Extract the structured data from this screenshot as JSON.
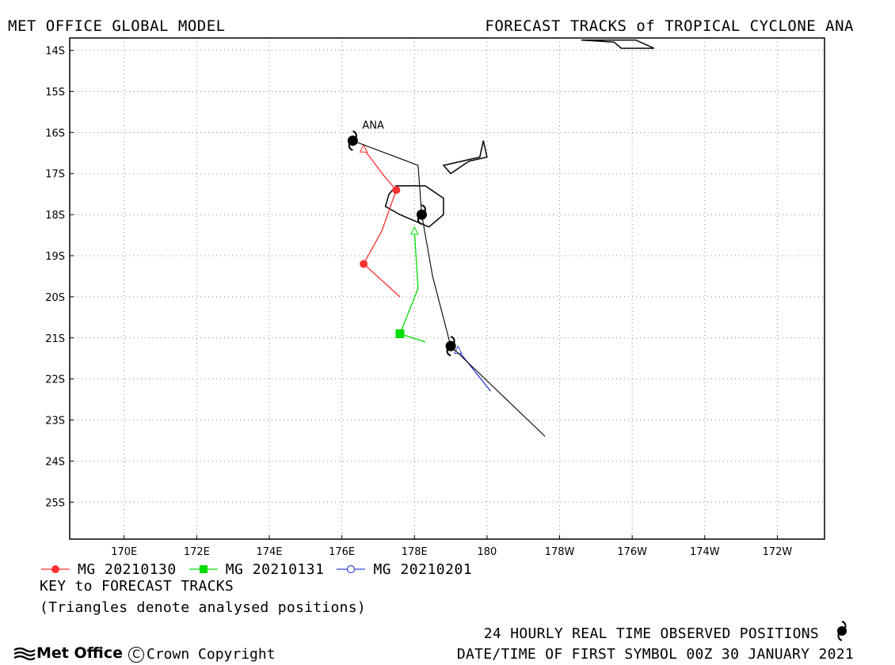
{
  "header": {
    "left_title": "MET OFFICE GLOBAL MODEL",
    "right_title": "FORECAST TRACKS of TROPICAL CYCLONE ANA"
  },
  "map": {
    "lat_labels": [
      "14S",
      "15S",
      "16S",
      "17S",
      "18S",
      "19S",
      "20S",
      "21S",
      "22S",
      "23S",
      "24S",
      "25S"
    ],
    "lon_labels": [
      "170E",
      "172E",
      "174E",
      "176E",
      "178E",
      "180",
      "178W",
      "176W",
      "174W",
      "172W"
    ],
    "lat_range_deg_south": [
      13.7,
      25.9
    ],
    "lon_range_deg_east": [
      168.5,
      189.3
    ],
    "grid": "dotted",
    "storm_label": "ANA",
    "observed_track": [
      [
        176.3,
        16.2
      ],
      [
        178.1,
        16.8
      ],
      [
        178.2,
        18.0
      ],
      [
        178.5,
        19.5
      ],
      [
        179.0,
        21.2
      ],
      [
        181.6,
        23.4
      ]
    ],
    "observed_positions": [
      [
        176.3,
        16.2
      ],
      [
        178.2,
        18.0
      ],
      [
        179.0,
        21.2
      ]
    ],
    "forecast_tracks": [
      {
        "name": "MG 20210130",
        "color": "#ff3030",
        "marker": "circle",
        "points": [
          [
            176.6,
            16.4
          ],
          [
            177.2,
            17.1
          ],
          [
            177.5,
            17.4
          ],
          [
            177.1,
            18.4
          ],
          [
            176.6,
            19.2
          ],
          [
            177.6,
            20.0
          ]
        ],
        "markers": [
          [
            177.5,
            17.4
          ],
          [
            176.6,
            19.2
          ]
        ],
        "analysed": [
          176.6,
          16.4
        ]
      },
      {
        "name": "MG 20210131",
        "color": "#00dd00",
        "marker": "square",
        "points": [
          [
            178.0,
            18.4
          ],
          [
            178.1,
            19.8
          ],
          [
            177.6,
            20.9
          ],
          [
            178.3,
            21.1
          ]
        ],
        "markers": [
          [
            177.6,
            20.9
          ]
        ],
        "analysed": [
          178.0,
          18.4
        ]
      },
      {
        "name": "MG 20210201",
        "color": "#3344dd",
        "marker": "open-circle",
        "points": [
          [
            179.2,
            21.3
          ],
          [
            180.1,
            22.3
          ]
        ],
        "markers": [],
        "analysed": [
          179.2,
          21.3
        ]
      }
    ],
    "uncertainty_polygon": [
      [
        177.5,
        17.3
      ],
      [
        178.3,
        17.3
      ],
      [
        178.8,
        17.6
      ],
      [
        178.8,
        18.0
      ],
      [
        178.4,
        18.3
      ],
      [
        177.6,
        18.0
      ],
      [
        177.2,
        17.8
      ],
      [
        177.3,
        17.5
      ]
    ],
    "islands": [
      [
        [
          178.8,
          16.8
        ],
        [
          179.8,
          16.6
        ],
        [
          179.9,
          16.2
        ],
        [
          180.0,
          16.6
        ],
        [
          179.5,
          16.7
        ],
        [
          179.0,
          17.0
        ],
        [
          178.9,
          16.9
        ]
      ],
      [
        [
          182.6,
          13.75
        ],
        [
          184.1,
          13.75
        ],
        [
          184.6,
          13.95
        ],
        [
          183.7,
          13.95
        ],
        [
          183.5,
          13.8
        ]
      ]
    ]
  },
  "legend": {
    "items": [
      {
        "label": "MG 20210130",
        "color": "#ff3030",
        "marker": "circle"
      },
      {
        "label": "MG 20210131",
        "color": "#00dd00",
        "marker": "square"
      },
      {
        "label": "MG 20210201",
        "color": "#3344dd",
        "marker": "open-circle"
      }
    ],
    "key_title": "KEY to FORECAST TRACKS",
    "key_note": "(Triangles denote analysed positions)"
  },
  "footer": {
    "brand": "Met Office",
    "copyright": "Crown Copyright",
    "copyright_symbol": "C",
    "observed_note": "24 HOURLY REAL TIME OBSERVED POSITIONS",
    "first_symbol": "DATE/TIME OF FIRST SYMBOL 00Z 30 JANUARY 2021"
  }
}
